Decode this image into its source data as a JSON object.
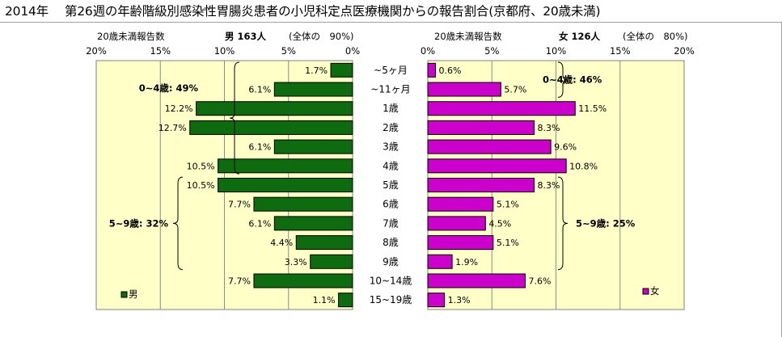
{
  "title": "2014年　 第26週の年齢階級別感染性胃腸炎患者の小児科定点医療機関からの報告割合(京都府、20歳未満)",
  "male_header": {
    "subtitle": "20歳未満報告数",
    "label": "男 163人",
    "share": "(全体の　90%)"
  },
  "female_header": {
    "subtitle": "20歳未満報告数",
    "label": "女 126人",
    "share": "(全体の　80%)"
  },
  "colors": {
    "male": "#0f6b0f",
    "female": "#cc00cc",
    "plot_bg": "#ffffc8",
    "grid": "#8c8c8c"
  },
  "chart_data": [
    {
      "type": "bar",
      "orientation": "horizontal",
      "direction": "right-to-left",
      "name": "男",
      "categories": [
        "~5ヶ月",
        "~11ヶ月",
        "1歳",
        "2歳",
        "3歳",
        "4歳",
        "5歳",
        "6歳",
        "7歳",
        "8歳",
        "9歳",
        "10~14歳",
        "15~19歳"
      ],
      "values": [
        1.7,
        6.1,
        12.2,
        12.7,
        6.1,
        10.5,
        10.5,
        7.7,
        6.1,
        4.4,
        3.3,
        7.7,
        1.1
      ],
      "data_labels": [
        "1.7%",
        "6.1%",
        "12.2%",
        "12.7%",
        "6.1%",
        "10.5%",
        "10.5%",
        "7.7%",
        "6.1%",
        "4.4%",
        "3.3%",
        "7.7%",
        "1.1%"
      ],
      "xlim": [
        0,
        20
      ],
      "xticks": [
        "20%",
        "15%",
        "10%",
        "5%",
        "0%"
      ],
      "legend": "男",
      "legend_position": "bottom-left",
      "grid": true,
      "annotations": [
        "0~4歳: 49%",
        "5~9歳: 32%"
      ]
    },
    {
      "type": "bar",
      "orientation": "horizontal",
      "direction": "left-to-right",
      "name": "女",
      "categories": [
        "~5ヶ月",
        "~11ヶ月",
        "1歳",
        "2歳",
        "3歳",
        "4歳",
        "5歳",
        "6歳",
        "7歳",
        "8歳",
        "9歳",
        "10~14歳",
        "15~19歳"
      ],
      "values": [
        0.6,
        5.7,
        11.5,
        8.3,
        9.6,
        10.8,
        8.3,
        5.1,
        4.5,
        5.1,
        1.9,
        7.6,
        1.3
      ],
      "data_labels": [
        "0.6%",
        "5.7%",
        "11.5%",
        "8.3%",
        "9.6%",
        "10.8%",
        "8.3%",
        "5.1%",
        "4.5%",
        "5.1%",
        "1.9%",
        "7.6%",
        "1.3%"
      ],
      "xlim": [
        0,
        20
      ],
      "xticks": [
        "0%",
        "5%",
        "10%",
        "15%",
        "20%"
      ],
      "legend": "女",
      "legend_position": "bottom-right",
      "grid": true,
      "annotations": [
        "0~4歳: 46%",
        "5~9歳: 25%"
      ]
    }
  ]
}
